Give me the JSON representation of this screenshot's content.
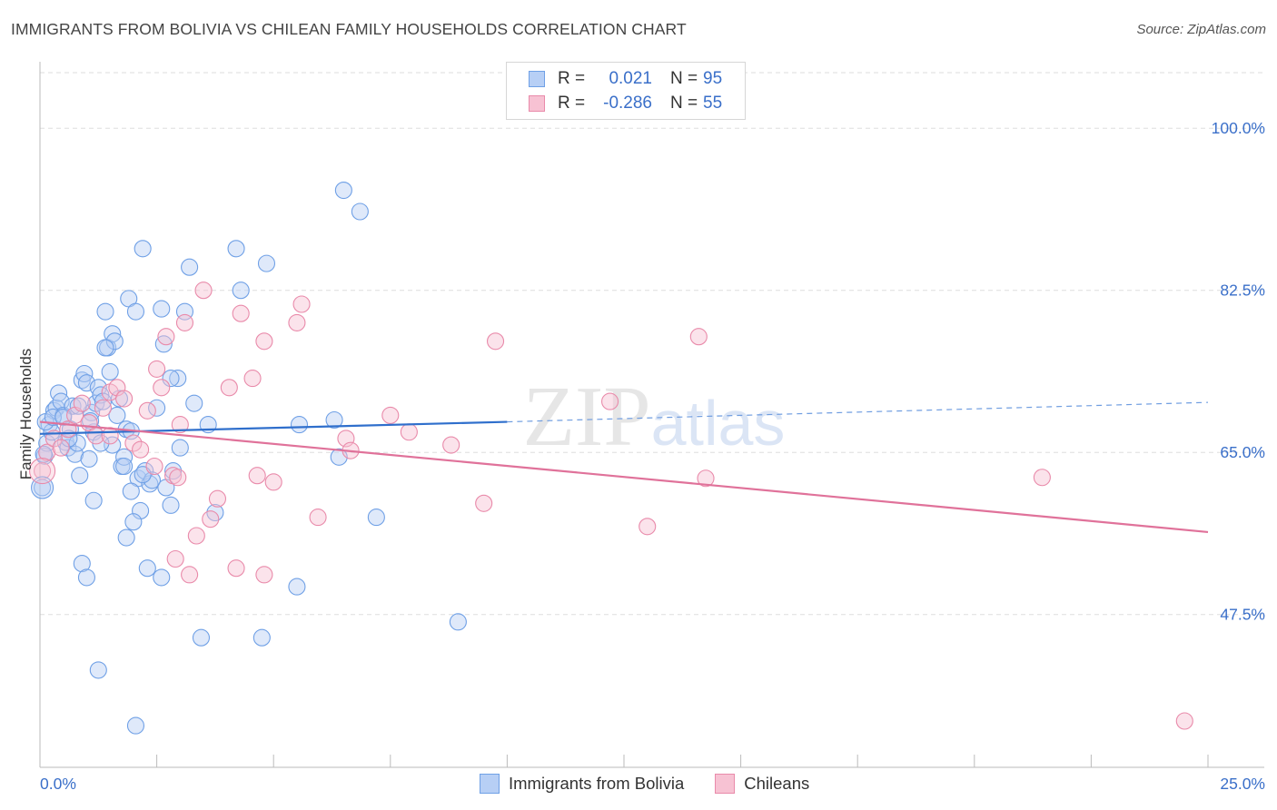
{
  "chart_data": {
    "type": "scatter",
    "title": "IMMIGRANTS FROM BOLIVIA VS CHILEAN FAMILY HOUSEHOLDS CORRELATION CHART",
    "source": "Source: ZipAtlas.com",
    "xlabel": "",
    "ylabel": "Family Households",
    "xlim": [
      0,
      25
    ],
    "ylim": [
      31,
      106
    ],
    "x_tick_labels": [
      "0.0%",
      "25.0%"
    ],
    "y_ticks": [
      47.5,
      65.0,
      82.5,
      100.0
    ],
    "y_tick_labels": [
      "47.5%",
      "65.0%",
      "82.5%",
      "100.0%"
    ],
    "grid": true,
    "watermark": "ZIPatlas",
    "legend_stats": [
      {
        "r_label": "R =",
        "r_value": "0.021",
        "n_label": "N =",
        "n_value": "95"
      },
      {
        "r_label": "R =",
        "r_value": "-0.286",
        "n_label": "N =",
        "n_value": "55"
      }
    ],
    "series": [
      {
        "name": "Immigrants from Bolivia",
        "color": "#6fa0e6",
        "fill": "#b7cff5",
        "trend": {
          "x0": 0,
          "y0": 67.0,
          "x1": 10,
          "y1": 68.3,
          "dashed_to_x": 25,
          "dashed_to_y": 70.4
        },
        "points": [
          [
            0.05,
            61.2
          ],
          [
            0.1,
            64.6
          ],
          [
            0.15,
            66.0
          ],
          [
            0.2,
            68.0
          ],
          [
            0.25,
            67.2
          ],
          [
            0.3,
            69.5
          ],
          [
            0.35,
            69.8
          ],
          [
            0.4,
            71.4
          ],
          [
            0.45,
            70.5
          ],
          [
            0.5,
            69.0
          ],
          [
            0.55,
            66.1
          ],
          [
            0.6,
            65.5
          ],
          [
            0.65,
            67.5
          ],
          [
            0.7,
            70.0
          ],
          [
            0.75,
            64.8
          ],
          [
            0.8,
            66.0
          ],
          [
            0.85,
            62.5
          ],
          [
            0.9,
            72.8
          ],
          [
            0.95,
            73.5
          ],
          [
            1.0,
            72.5
          ],
          [
            1.05,
            64.3
          ],
          [
            1.1,
            69.3
          ],
          [
            1.15,
            67.2
          ],
          [
            1.2,
            70.3
          ],
          [
            1.25,
            72.0
          ],
          [
            1.3,
            71.2
          ],
          [
            1.35,
            70.5
          ],
          [
            1.4,
            80.2
          ],
          [
            1.45,
            76.3
          ],
          [
            1.5,
            73.7
          ],
          [
            1.55,
            77.8
          ],
          [
            1.6,
            77.0
          ],
          [
            1.65,
            69.0
          ],
          [
            1.7,
            70.8
          ],
          [
            1.75,
            63.5
          ],
          [
            1.8,
            64.5
          ],
          [
            1.85,
            67.5
          ],
          [
            1.9,
            81.6
          ],
          [
            1.95,
            67.3
          ],
          [
            2.05,
            80.2
          ],
          [
            2.1,
            62.2
          ],
          [
            2.15,
            58.7
          ],
          [
            2.25,
            63.0
          ],
          [
            2.35,
            61.6
          ],
          [
            2.4,
            62.0
          ],
          [
            2.5,
            69.8
          ],
          [
            2.6,
            80.5
          ],
          [
            2.65,
            76.7
          ],
          [
            2.8,
            59.3
          ],
          [
            2.95,
            73.0
          ],
          [
            3.1,
            80.2
          ],
          [
            3.2,
            85.0
          ],
          [
            3.3,
            70.3
          ],
          [
            3.6,
            68.0
          ],
          [
            3.75,
            58.5
          ],
          [
            4.2,
            87.0
          ],
          [
            4.3,
            82.5
          ],
          [
            4.85,
            85.4
          ],
          [
            5.55,
            68.0
          ],
          [
            6.3,
            68.5
          ],
          [
            6.4,
            64.5
          ],
          [
            6.5,
            93.3
          ],
          [
            6.85,
            91.0
          ],
          [
            7.2,
            58.0
          ],
          [
            8.95,
            46.7
          ],
          [
            0.08,
            64.8
          ],
          [
            0.12,
            68.3
          ],
          [
            0.28,
            68.8
          ],
          [
            0.5,
            68.8
          ],
          [
            0.62,
            66.5
          ],
          [
            0.9,
            53.0
          ],
          [
            1.0,
            51.5
          ],
          [
            1.15,
            59.8
          ],
          [
            1.4,
            76.3
          ],
          [
            1.55,
            65.8
          ],
          [
            1.8,
            63.5
          ],
          [
            1.85,
            55.8
          ],
          [
            2.0,
            57.5
          ],
          [
            2.2,
            62.6
          ],
          [
            2.3,
            52.5
          ],
          [
            2.6,
            51.5
          ],
          [
            2.7,
            61.2
          ],
          [
            2.85,
            63.0
          ],
          [
            3.0,
            65.5
          ],
          [
            3.45,
            45.0
          ],
          [
            4.75,
            45.0
          ],
          [
            5.5,
            50.5
          ],
          [
            1.25,
            41.5
          ],
          [
            2.05,
            35.5
          ],
          [
            2.2,
            87.0
          ],
          [
            0.82,
            70.0
          ],
          [
            1.08,
            68.4
          ],
          [
            1.3,
            66.0
          ],
          [
            1.95,
            60.8
          ],
          [
            2.8,
            73.0
          ]
        ]
      },
      {
        "name": "Chileans",
        "color": "#e98aaa",
        "fill": "#f7c2d3",
        "trend": {
          "x0": 0,
          "y0": 68.3,
          "x1": 25,
          "y1": 56.4
        },
        "points": [
          [
            0.05,
            63.0
          ],
          [
            0.15,
            65.0
          ],
          [
            0.3,
            66.5
          ],
          [
            0.45,
            65.5
          ],
          [
            0.6,
            67.5
          ],
          [
            0.75,
            69.0
          ],
          [
            0.9,
            70.3
          ],
          [
            1.05,
            68.2
          ],
          [
            1.2,
            66.8
          ],
          [
            1.35,
            69.8
          ],
          [
            1.5,
            71.5
          ],
          [
            1.65,
            72.0
          ],
          [
            1.8,
            70.8
          ],
          [
            2.0,
            66.0
          ],
          [
            2.15,
            65.3
          ],
          [
            2.3,
            69.5
          ],
          [
            2.45,
            63.5
          ],
          [
            2.5,
            74.0
          ],
          [
            2.6,
            72.0
          ],
          [
            2.7,
            77.5
          ],
          [
            2.85,
            62.5
          ],
          [
            2.95,
            62.3
          ],
          [
            3.1,
            79.0
          ],
          [
            3.35,
            56.0
          ],
          [
            3.5,
            82.5
          ],
          [
            3.65,
            57.8
          ],
          [
            3.8,
            60.0
          ],
          [
            4.05,
            72.0
          ],
          [
            4.2,
            52.5
          ],
          [
            4.3,
            80.0
          ],
          [
            4.55,
            73.0
          ],
          [
            4.65,
            62.5
          ],
          [
            4.8,
            77.0
          ],
          [
            5.0,
            61.8
          ],
          [
            5.5,
            79.0
          ],
          [
            5.6,
            81.0
          ],
          [
            5.95,
            58.0
          ],
          [
            6.55,
            66.5
          ],
          [
            6.65,
            65.2
          ],
          [
            7.5,
            69.0
          ],
          [
            7.9,
            67.2
          ],
          [
            8.8,
            65.8
          ],
          [
            9.5,
            59.5
          ],
          [
            9.75,
            77.0
          ],
          [
            12.2,
            70.5
          ],
          [
            13.0,
            57.0
          ],
          [
            14.1,
            77.5
          ],
          [
            14.25,
            62.2
          ],
          [
            21.45,
            62.3
          ],
          [
            24.5,
            36.0
          ],
          [
            2.9,
            53.5
          ],
          [
            3.2,
            51.8
          ],
          [
            4.8,
            51.8
          ],
          [
            1.5,
            66.8
          ],
          [
            3.0,
            68.0
          ]
        ]
      }
    ]
  }
}
